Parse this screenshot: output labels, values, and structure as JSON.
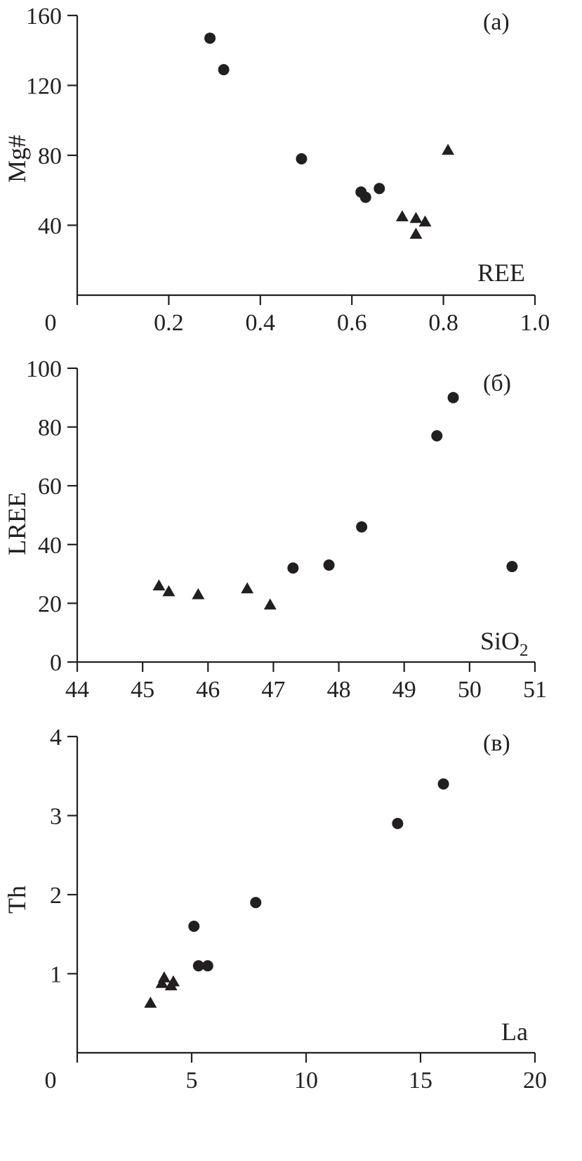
{
  "chart_data": [
    {
      "type": "scatter",
      "panel_label": "(a)",
      "xlabel": "REE",
      "ylabel": "Mg#",
      "xlim": [
        0,
        1.0
      ],
      "ylim": [
        0,
        160
      ],
      "xticks": [
        "0",
        "0.2",
        "0.4",
        "0.6",
        "0.8",
        "1.0"
      ],
      "yticks": [
        "40",
        "80",
        "120",
        "160"
      ],
      "series": [
        {
          "marker": "circle",
          "points": [
            [
              0.29,
              147
            ],
            [
              0.32,
              129
            ],
            [
              0.49,
              78
            ],
            [
              0.62,
              59
            ],
            [
              0.63,
              56
            ],
            [
              0.66,
              61
            ]
          ]
        },
        {
          "marker": "triangle",
          "points": [
            [
              0.71,
              45
            ],
            [
              0.74,
              44
            ],
            [
              0.74,
              35
            ],
            [
              0.76,
              42
            ],
            [
              0.81,
              83
            ]
          ]
        }
      ]
    },
    {
      "type": "scatter",
      "panel_label": "(б)",
      "xlabel": "SiO",
      "xlabel_sub": "2",
      "ylabel": "LREE",
      "xlim": [
        44,
        51
      ],
      "ylim": [
        0,
        100
      ],
      "xticks": [
        "44",
        "45",
        "46",
        "47",
        "48",
        "49",
        "50",
        "51"
      ],
      "yticks": [
        "0",
        "20",
        "40",
        "60",
        "80",
        "100"
      ],
      "series": [
        {
          "marker": "circle",
          "points": [
            [
              47.3,
              32
            ],
            [
              47.85,
              33
            ],
            [
              48.35,
              46
            ],
            [
              49.5,
              77
            ],
            [
              49.75,
              90
            ],
            [
              50.65,
              32.5
            ]
          ]
        },
        {
          "marker": "triangle",
          "points": [
            [
              45.25,
              26
            ],
            [
              45.4,
              24
            ],
            [
              45.85,
              23
            ],
            [
              46.6,
              25
            ],
            [
              46.95,
              19.5
            ]
          ]
        }
      ]
    },
    {
      "type": "scatter",
      "panel_label": "(в)",
      "xlabel": "La",
      "ylabel": "Th",
      "xlim": [
        0,
        20
      ],
      "ylim": [
        0,
        4
      ],
      "xticks": [
        "0",
        "5",
        "10",
        "15",
        "20"
      ],
      "yticks": [
        "1",
        "2",
        "3",
        "4"
      ],
      "series": [
        {
          "marker": "circle",
          "points": [
            [
              5.1,
              1.6
            ],
            [
              5.3,
              1.1
            ],
            [
              5.7,
              1.1
            ],
            [
              7.8,
              1.9
            ],
            [
              14.0,
              2.9
            ],
            [
              16.0,
              3.4
            ]
          ]
        },
        {
          "marker": "triangle",
          "points": [
            [
              3.2,
              0.63
            ],
            [
              3.7,
              0.88
            ],
            [
              3.8,
              0.95
            ],
            [
              4.1,
              0.85
            ],
            [
              4.2,
              0.9
            ]
          ]
        }
      ]
    }
  ]
}
